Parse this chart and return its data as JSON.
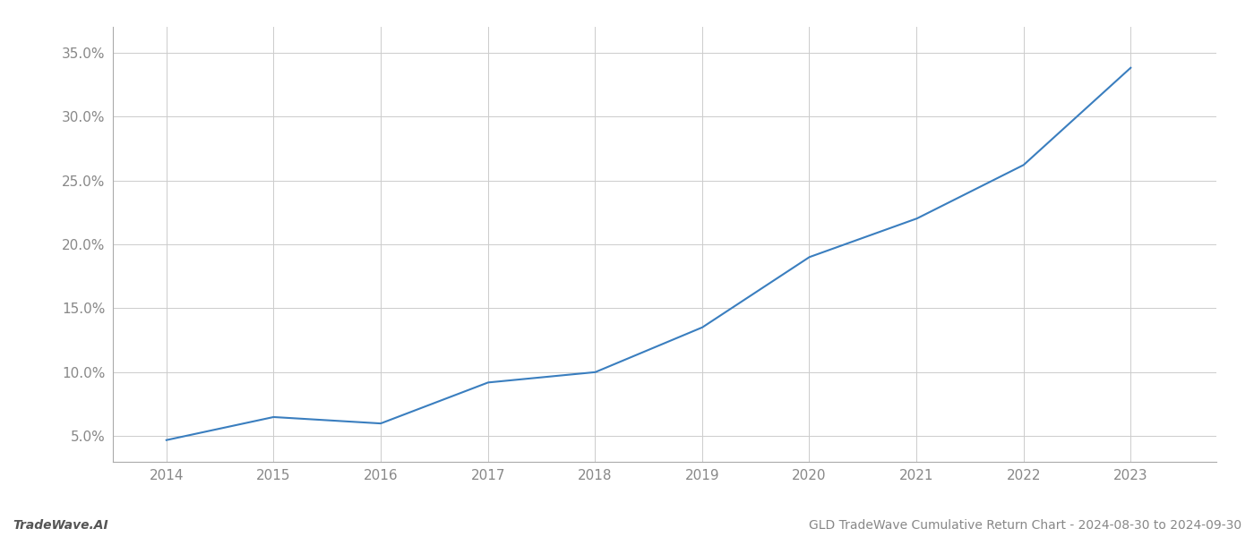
{
  "x_years": [
    2014,
    2015,
    2016,
    2017,
    2018,
    2019,
    2020,
    2021,
    2022,
    2023
  ],
  "y_values": [
    0.047,
    0.065,
    0.06,
    0.092,
    0.1,
    0.135,
    0.19,
    0.22,
    0.262,
    0.338
  ],
  "line_color": "#3a7ebf",
  "line_width": 1.5,
  "background_color": "#ffffff",
  "grid_color": "#cccccc",
  "y_ticks": [
    0.05,
    0.1,
    0.15,
    0.2,
    0.25,
    0.3,
    0.35
  ],
  "y_tick_labels": [
    "5.0%",
    "10.0%",
    "15.0%",
    "20.0%",
    "25.0%",
    "30.0%",
    "35.0%"
  ],
  "x_ticks": [
    2014,
    2015,
    2016,
    2017,
    2018,
    2019,
    2020,
    2021,
    2022,
    2023
  ],
  "footer_left": "TradeWave.AI",
  "footer_right": "GLD TradeWave Cumulative Return Chart - 2024-08-30 to 2024-09-30",
  "xlim": [
    2013.5,
    2023.8
  ],
  "ylim": [
    0.03,
    0.37
  ]
}
